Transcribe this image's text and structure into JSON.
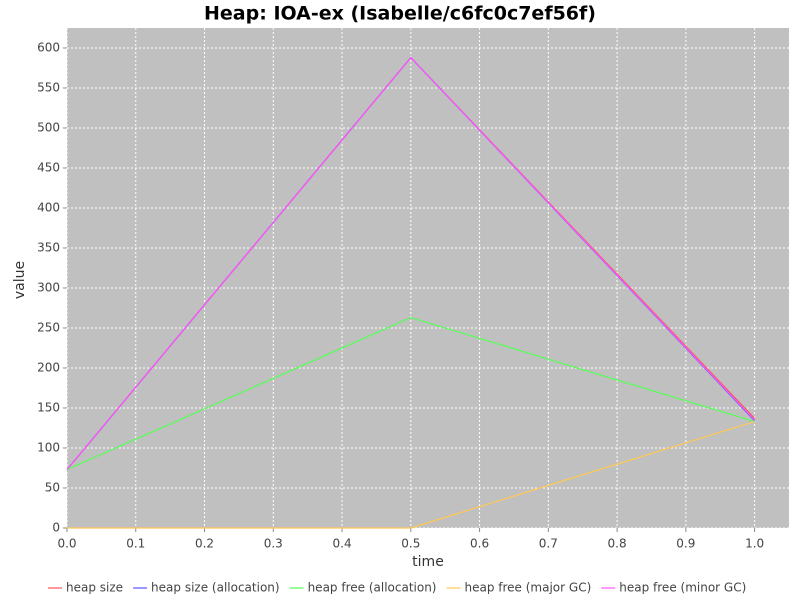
{
  "chart_data": {
    "type": "line",
    "title": "Heap: IOA-ex (Isabelle/c6fc0c7ef56f)",
    "x_label": "time",
    "y_label": "value",
    "x": [
      0,
      0.5,
      1
    ],
    "series": [
      {
        "name": "heap size",
        "color": "#ff5555",
        "values": [
          73,
          588,
          137
        ]
      },
      {
        "name": "heap size (allocation)",
        "color": "#5555ff",
        "values": [
          73,
          588,
          134
        ]
      },
      {
        "name": "heap free (allocation)",
        "color": "#55ff55",
        "values": [
          73,
          263,
          133
        ]
      },
      {
        "name": "heap free (major GC)",
        "color": "#ffc855",
        "values": [
          0,
          0,
          133
        ]
      },
      {
        "name": "heap free (minor GC)",
        "color": "#ff55ff",
        "values": [
          73,
          588,
          135
        ]
      }
    ],
    "xlim": [
      0,
      1.05
    ],
    "xticks": [
      {
        "value": 0,
        "label": "0.0"
      },
      0.1,
      0.2,
      0.3,
      0.4,
      0.5,
      0.6,
      0.7,
      0.8,
      0.9,
      {
        "value": 1,
        "label": "1.0"
      }
    ],
    "ylim": [
      0,
      625
    ],
    "yticks": [
      0,
      50,
      100,
      150,
      200,
      250,
      300,
      350,
      400,
      450,
      500,
      550,
      600
    ],
    "grid": true,
    "legend": "bottom"
  }
}
